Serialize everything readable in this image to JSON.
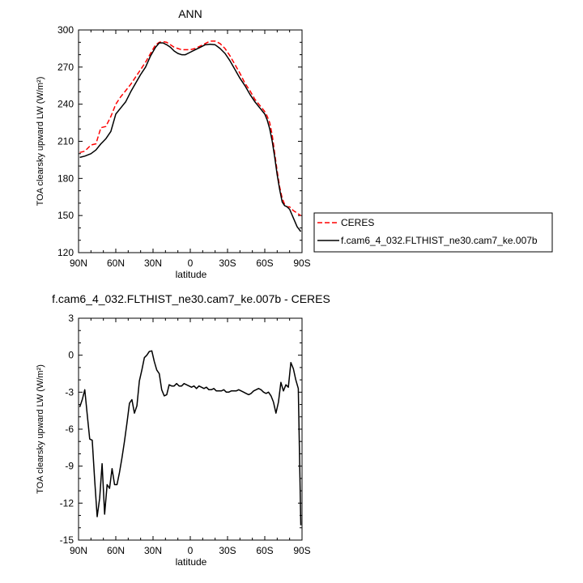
{
  "chart_data": [
    {
      "type": "line",
      "title": "ANN",
      "xlabel": "latitude",
      "ylabel": "TOA clearsky upward LW (W/m²)",
      "ylim": [
        120,
        300
      ],
      "xlim": [
        90,
        -90
      ],
      "yticks": [
        120,
        150,
        180,
        210,
        240,
        270,
        300
      ],
      "xticks": [
        90,
        60,
        30,
        0,
        -30,
        -60,
        -90
      ],
      "xtick_labels": [
        "90N",
        "60N",
        "30N",
        "0",
        "30S",
        "60S",
        "90S"
      ],
      "grid": false,
      "legend_position": "outside-right",
      "series": [
        {
          "name": "CERES",
          "color": "#ff0000",
          "style": "dashed",
          "x": [
            89,
            85,
            80,
            76,
            72,
            68,
            64,
            60,
            56,
            52,
            48,
            44,
            40,
            36,
            32,
            28,
            25,
            22,
            19,
            16,
            13,
            10,
            7,
            4,
            0,
            -4,
            -8,
            -12,
            -16,
            -20,
            -24,
            -28,
            -32,
            -36,
            -40,
            -44,
            -48,
            -52,
            -56,
            -60,
            -62,
            -64,
            -66,
            -68,
            -70,
            -72,
            -74,
            -76,
            -78,
            -80,
            -83,
            -86,
            -89
          ],
          "y": [
            201,
            202,
            207,
            208,
            221,
            222,
            230,
            240,
            246,
            251,
            256,
            262,
            268,
            274,
            281,
            288,
            290,
            290.5,
            290,
            288,
            286,
            285,
            284,
            284,
            284,
            285,
            287,
            289,
            291,
            291,
            289,
            285,
            279,
            272,
            265,
            257,
            251,
            244,
            239,
            234,
            230,
            225,
            215,
            200,
            186,
            173,
            164,
            159,
            157,
            157,
            154,
            152,
            150
          ]
        },
        {
          "name": "f.cam6_4_032.FLTHIST_ne30.cam7_ke.007b",
          "color": "#000000",
          "style": "solid",
          "x": [
            89,
            85,
            80,
            76,
            72,
            68,
            64,
            60,
            56,
            52,
            48,
            44,
            40,
            36,
            32,
            28,
            25,
            22,
            19,
            16,
            13,
            10,
            7,
            4,
            0,
            -4,
            -8,
            -12,
            -16,
            -20,
            -24,
            -28,
            -32,
            -36,
            -40,
            -44,
            -48,
            -52,
            -56,
            -60,
            -62,
            -64,
            -66,
            -68,
            -70,
            -72,
            -74,
            -76,
            -78,
            -80,
            -83,
            -86,
            -89
          ],
          "y": [
            197,
            198,
            200,
            203,
            208,
            212,
            218,
            232,
            237,
            242,
            250,
            257,
            264,
            270,
            279,
            286,
            289.5,
            289.5,
            288,
            286,
            283,
            281,
            280,
            280,
            282,
            284,
            286,
            288,
            288.5,
            288,
            285,
            281,
            275,
            268,
            261,
            255,
            248,
            242,
            237,
            232,
            227,
            220,
            210,
            197,
            183,
            171,
            161,
            158,
            157,
            155,
            148,
            141,
            137
          ]
        }
      ]
    },
    {
      "type": "line",
      "title": "f.cam6_4_032.FLTHIST_ne30.cam7_ke.007b - CERES",
      "xlabel": "latitude",
      "ylabel": "TOA clearsky upward LW (W/m²)",
      "ylim": [
        -15,
        3
      ],
      "xlim": [
        90,
        -90
      ],
      "yticks": [
        -15,
        -12,
        -9,
        -6,
        -3,
        0,
        3
      ],
      "xticks": [
        90,
        60,
        30,
        0,
        -30,
        -60,
        -90
      ],
      "xtick_labels": [
        "90N",
        "60N",
        "30N",
        "0",
        "30S",
        "60S",
        "90S"
      ],
      "grid": false,
      "series": [
        {
          "color": "#000000",
          "style": "solid",
          "x": [
            89,
            87,
            85,
            83,
            81,
            79,
            77,
            75,
            73,
            71,
            69,
            67,
            65,
            63,
            61,
            59,
            57,
            55,
            53,
            51,
            49,
            47,
            45,
            43,
            41,
            39,
            37,
            35,
            33,
            31,
            29,
            27,
            25,
            23,
            21,
            19,
            17,
            15,
            13,
            11,
            9,
            7,
            5,
            3,
            1,
            -1,
            -3,
            -5,
            -7,
            -9,
            -11,
            -13,
            -15,
            -17,
            -19,
            -21,
            -23,
            -25,
            -27,
            -29,
            -31,
            -33,
            -35,
            -37,
            -39,
            -41,
            -43,
            -45,
            -47,
            -49,
            -51,
            -53,
            -55,
            -57,
            -59,
            -61,
            -63,
            -65,
            -67,
            -69,
            -71,
            -73,
            -75,
            -77,
            -79,
            -81,
            -83,
            -85,
            -87,
            -89
          ],
          "y": [
            -4.2,
            -3.6,
            -2.8,
            -4.8,
            -6.8,
            -6.9,
            -10.1,
            -13.1,
            -11.6,
            -8.8,
            -12.9,
            -10.5,
            -10.8,
            -9.2,
            -10.5,
            -10.5,
            -9.5,
            -8.3,
            -7.0,
            -5.5,
            -3.9,
            -3.6,
            -4.7,
            -4.1,
            -2.1,
            -1.2,
            -0.2,
            0.0,
            0.3,
            0.35,
            -0.5,
            -1.2,
            -1.5,
            -2.8,
            -3.3,
            -3.2,
            -2.4,
            -2.5,
            -2.5,
            -2.3,
            -2.5,
            -2.5,
            -2.3,
            -2.4,
            -2.5,
            -2.6,
            -2.5,
            -2.7,
            -2.5,
            -2.6,
            -2.7,
            -2.6,
            -2.8,
            -2.8,
            -2.7,
            -2.9,
            -2.9,
            -2.9,
            -2.8,
            -3.0,
            -3.0,
            -2.9,
            -2.9,
            -2.9,
            -2.8,
            -2.9,
            -3.0,
            -3.1,
            -3.2,
            -3.1,
            -2.9,
            -2.8,
            -2.7,
            -2.8,
            -3.0,
            -3.1,
            -3.0,
            -3.3,
            -3.8,
            -4.7,
            -3.8,
            -2.2,
            -2.9,
            -2.4,
            -2.6,
            -0.6,
            -1.1,
            -2.0,
            -2.7,
            -13.8
          ]
        }
      ]
    }
  ]
}
